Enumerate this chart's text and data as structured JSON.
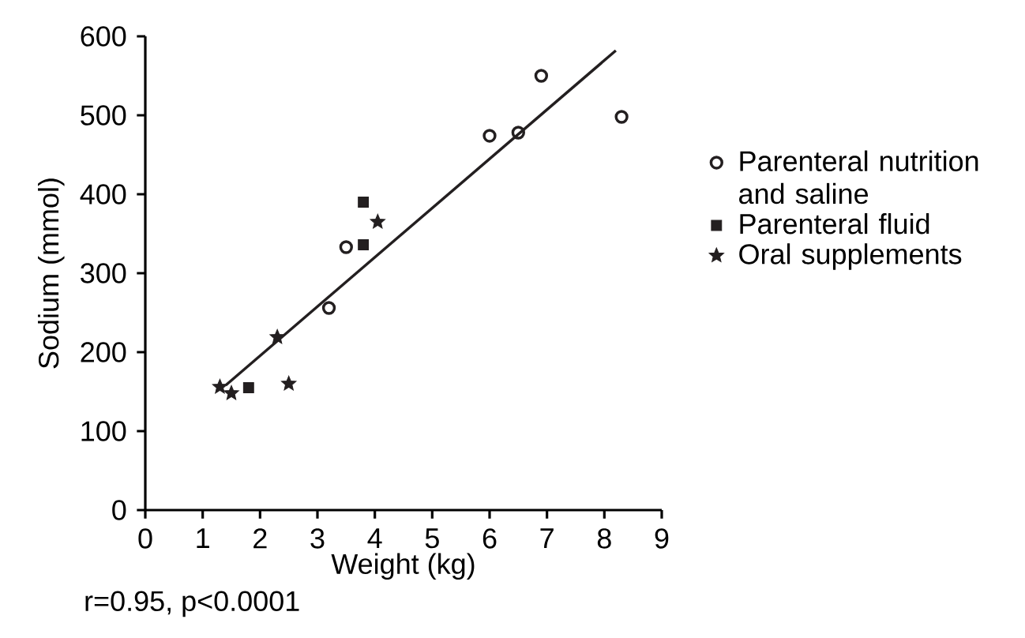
{
  "chart_data": {
    "type": "scatter",
    "xlabel": "Weight (kg)",
    "ylabel": "Sodium (mmol)",
    "xlim": [
      0,
      9
    ],
    "ylim": [
      0,
      600
    ],
    "xticks": [
      0,
      1,
      2,
      3,
      4,
      5,
      6,
      7,
      8,
      9
    ],
    "yticks": [
      0,
      100,
      200,
      300,
      400,
      500,
      600
    ],
    "legend": "right",
    "grid": false,
    "series": [
      {
        "name": "Parenteral nutrition and saline",
        "color": "#231f20",
        "marker": "circle",
        "x": [
          3.2,
          3.5,
          6.0,
          6.5,
          6.9,
          8.3
        ],
        "values": [
          256,
          333,
          474,
          478,
          550,
          498
        ]
      },
      {
        "name": "Parenteral fluid",
        "color": "#231f20",
        "marker": "square",
        "x": [
          1.8,
          3.8,
          3.8
        ],
        "values": [
          155,
          336,
          390
        ]
      },
      {
        "name": "Oral supplements",
        "color": "#231f20",
        "marker": "star",
        "x": [
          1.3,
          1.5,
          2.3,
          2.5,
          4.05
        ],
        "values": [
          156,
          148,
          219,
          160,
          365
        ]
      },
      {
        "type": "line",
        "color": "#231f20",
        "marker": "none",
        "line_style": "solid",
        "x": [
          1.4,
          8.2
        ],
        "values": [
          158,
          582
        ]
      }
    ],
    "annotations": [
      "r=0.95, p<0.0001"
    ]
  }
}
